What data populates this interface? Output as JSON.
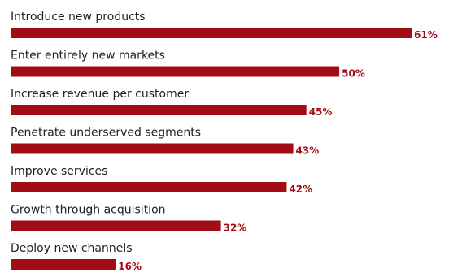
{
  "chart_data": {
    "type": "bar",
    "orientation": "horizontal",
    "categories": [
      "Introduce new products",
      "Enter entirely new markets",
      "Increase revenue per customer",
      "Penetrate underserved segments",
      "Improve services",
      "Growth through acquisition",
      "Deploy new channels"
    ],
    "values": [
      61,
      50,
      45,
      43,
      42,
      32,
      16
    ],
    "value_labels": [
      "61%",
      "50%",
      "45%",
      "43%",
      "42%",
      "32%",
      "16%"
    ],
    "unit": "%",
    "xlim": [
      0,
      61
    ],
    "grid": false,
    "legend": "none",
    "colors": {
      "bar": "#a20c14",
      "value_text": "#a20c14",
      "label_text": "#222222"
    }
  }
}
